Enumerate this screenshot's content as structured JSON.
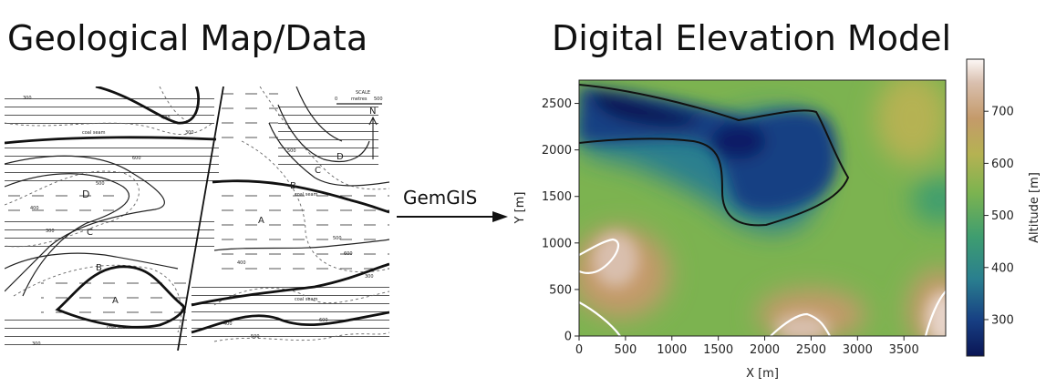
{
  "left_title": "Geological Map/Data",
  "right_title": "Digital Elevation Model",
  "arrow_label": "GemGIS",
  "map": {
    "scale_label": "SCALE",
    "scale_unit": "metres",
    "scale_zero": "0",
    "scale_max": "500",
    "north_label": "N",
    "unit_labels": [
      "D",
      "C",
      "B",
      "A",
      "A",
      "B",
      "C",
      "D"
    ],
    "seam_label": "coal seam",
    "contour_labels": [
      "300",
      "400",
      "300",
      "500",
      "600",
      "400",
      "300",
      "500",
      "400",
      "500",
      "600",
      "300",
      "300",
      "400",
      "500",
      "600"
    ]
  },
  "chart_data": {
    "type": "heatmap",
    "x_ticks": [
      "0",
      "500",
      "1000",
      "1500",
      "2000",
      "2500",
      "3000",
      "3500"
    ],
    "y_ticks": [
      "0",
      "500",
      "1000",
      "1500",
      "2000",
      "2500"
    ],
    "xlabel": "X [m]",
    "ylabel": "Y [m]",
    "xlim": [
      0,
      3950
    ],
    "ylim": [
      0,
      2750
    ],
    "colorbar_label": "Altitude [m]",
    "colorbar_ticks": [
      "300",
      "400",
      "500",
      "600",
      "700"
    ],
    "colorbar_range": [
      230,
      800
    ],
    "colormap": "gist_earth",
    "contour_levels_highlighted": [
      250,
      750
    ]
  }
}
